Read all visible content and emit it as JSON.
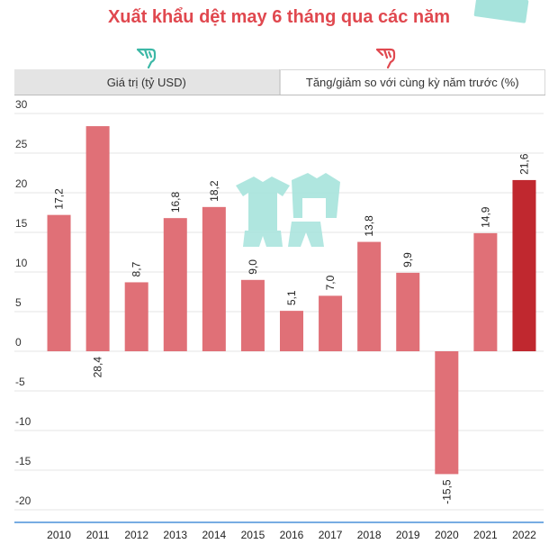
{
  "title": "Xuất khẩu dệt may 6 tháng qua các năm",
  "tabs": [
    {
      "label": "Giá trị (tỷ USD)",
      "active": false
    },
    {
      "label": "Tăng/giảm so với cùng kỳ năm trước (%)",
      "active": true
    }
  ],
  "colors": {
    "title": "#e0484f",
    "bar": "#e07077",
    "bar_highlight": "#c0282f",
    "hand_left": "#3cb8a6",
    "hand_right": "#e0484f",
    "decor": "#a6e3dc"
  },
  "chart_data": {
    "type": "bar",
    "title": "Tăng/giảm so với cùng kỳ năm trước (%)",
    "categories": [
      "2010",
      "2011",
      "2012",
      "2013",
      "2014",
      "2015",
      "2016",
      "2017",
      "2018",
      "2019",
      "2020",
      "2021",
      "2022"
    ],
    "values": [
      17.2,
      28.4,
      8.7,
      16.8,
      18.2,
      9.0,
      5.1,
      7.0,
      13.8,
      9.9,
      -15.5,
      14.9,
      21.6
    ],
    "data_labels": [
      "17,2",
      "28,4",
      "8,7",
      "16,8",
      "18,2",
      "9,0",
      "5,1",
      "7,0",
      "13,8",
      "9,9",
      "-15,5",
      "14,9",
      "21,6"
    ],
    "highlight_index": 12,
    "ylim": [
      -20,
      30
    ],
    "yticks": [
      30,
      25,
      20,
      15,
      10,
      5,
      0,
      -5,
      -10,
      -15,
      -20
    ],
    "ytick_labels": [
      "30",
      "25",
      "20",
      "15",
      "10",
      "5",
      "0",
      "-5",
      "-10",
      "-15",
      "-20"
    ],
    "grid": true,
    "xlabel": "",
    "ylabel": ""
  }
}
